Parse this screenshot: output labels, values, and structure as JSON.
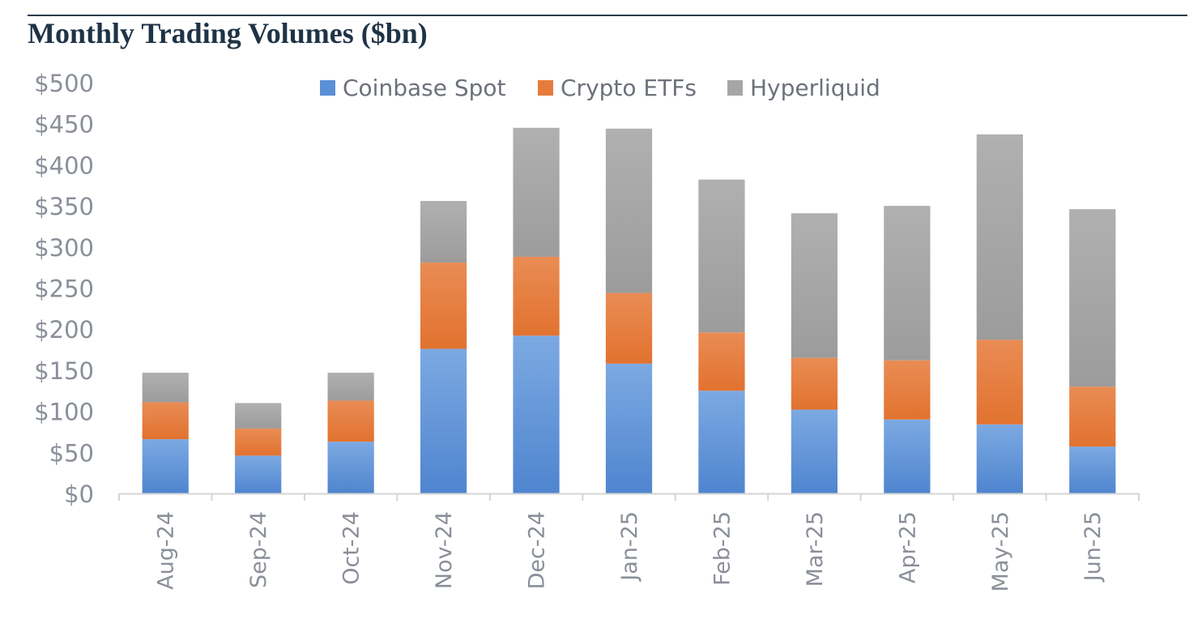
{
  "chart_data": {
    "type": "bar",
    "stacked": true,
    "title": "Monthly Trading Volumes ($bn)",
    "categories": [
      "Aug-24",
      "Sep-24",
      "Oct-24",
      "Nov-24",
      "Dec-24",
      "Jan-25",
      "Feb-25",
      "Mar-25",
      "Apr-25",
      "May-25",
      "Jun-25"
    ],
    "series": [
      {
        "name": "Coinbase Spot",
        "color": "#5b8fd6",
        "values": [
          66,
          46,
          63,
          176,
          192,
          158,
          125,
          102,
          90,
          84,
          57
        ]
      },
      {
        "name": "Crypto ETFs",
        "color": "#e67c3c",
        "values": [
          45,
          33,
          50,
          105,
          96,
          86,
          71,
          63,
          72,
          103,
          73
        ]
      },
      {
        "name": "Hyperliquid",
        "color": "#a6a6a6",
        "values": [
          36,
          31,
          34,
          75,
          157,
          200,
          186,
          176,
          188,
          250,
          216
        ]
      }
    ],
    "ylim": [
      0,
      500
    ],
    "y_ticks": [
      0,
      50,
      100,
      150,
      200,
      250,
      300,
      350,
      400,
      450,
      500
    ],
    "y_tick_labels": [
      "$0",
      "$50",
      "$100",
      "$150",
      "$200",
      "$250",
      "$300",
      "$350",
      "$400",
      "$450",
      "$500"
    ],
    "xlabel": "",
    "ylabel": "",
    "grid": false,
    "legend_position": "top"
  }
}
